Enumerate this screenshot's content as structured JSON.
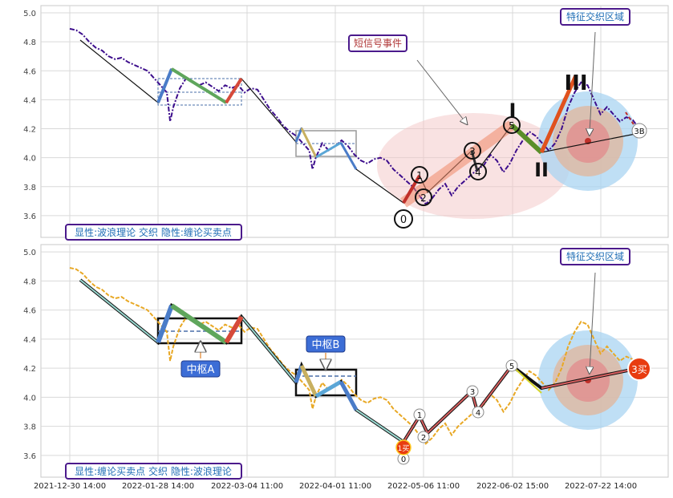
{
  "chart_data": [
    {
      "type": "line",
      "title": "",
      "ylim": [
        3.45,
        5.05
      ],
      "yticks": [
        3.6,
        3.8,
        4.0,
        4.2,
        4.4,
        4.6,
        4.8,
        5.0
      ],
      "grid": true,
      "legend_text": "显性:波浪理论 交织 隐性:缠论买卖点",
      "annotations": {
        "short_signal_event": "短信号事件",
        "feature_zone": "特征交织区域",
        "wave_labels": [
          "0",
          "1",
          "2",
          "3",
          "4",
          "5",
          "III",
          "II",
          "I",
          "3B"
        ]
      },
      "series": [
        {
          "style": "purple dash-dot price",
          "color": "#3c0d8c",
          "points": [
            [
              0,
              4.89
            ],
            [
              1,
              4.88
            ],
            [
              2,
              4.85
            ],
            [
              3,
              4.8
            ],
            [
              4,
              4.76
            ],
            [
              5,
              4.74
            ],
            [
              6,
              4.7
            ],
            [
              7,
              4.68
            ],
            [
              8,
              4.69
            ],
            [
              9,
              4.66
            ],
            [
              10,
              4.64
            ],
            [
              11,
              4.62
            ],
            [
              12,
              4.6
            ],
            [
              13,
              4.55
            ],
            [
              14,
              4.5
            ],
            [
              15,
              4.45
            ],
            [
              15.5,
              4.25
            ],
            [
              16,
              4.35
            ],
            [
              17,
              4.48
            ],
            [
              18,
              4.55
            ],
            [
              19,
              4.52
            ],
            [
              20,
              4.5
            ],
            [
              21,
              4.52
            ],
            [
              22,
              4.49
            ],
            [
              23,
              4.46
            ],
            [
              24,
              4.5
            ],
            [
              25,
              4.48
            ],
            [
              26,
              4.5
            ],
            [
              27,
              4.45
            ],
            [
              28,
              4.48
            ],
            [
              29,
              4.47
            ],
            [
              30,
              4.4
            ],
            [
              31,
              4.33
            ],
            [
              32,
              4.28
            ],
            [
              33,
              4.22
            ],
            [
              34,
              4.18
            ],
            [
              35,
              4.15
            ],
            [
              36,
              4.1
            ],
            [
              37,
              4.05
            ],
            [
              37.5,
              3.92
            ],
            [
              38,
              4.0
            ],
            [
              39,
              4.1
            ],
            [
              40,
              4.05
            ],
            [
              41,
              4.08
            ],
            [
              42,
              4.12
            ],
            [
              43,
              4.08
            ],
            [
              44,
              4.02
            ],
            [
              45,
              3.98
            ],
            [
              46,
              3.96
            ],
            [
              47,
              3.99
            ],
            [
              48,
              4.0
            ],
            [
              49,
              3.98
            ],
            [
              50,
              3.92
            ],
            [
              51,
              3.88
            ],
            [
              52,
              3.84
            ],
            [
              53,
              3.8
            ],
            [
              54,
              3.74
            ],
            [
              55,
              3.68
            ],
            [
              56,
              3.72
            ],
            [
              57,
              3.78
            ],
            [
              58,
              3.82
            ],
            [
              59,
              3.74
            ],
            [
              60,
              3.8
            ],
            [
              61,
              3.84
            ],
            [
              62,
              3.88
            ],
            [
              63,
              3.92
            ],
            [
              64,
              3.95
            ],
            [
              65,
              4.02
            ],
            [
              66,
              3.98
            ],
            [
              67,
              3.9
            ],
            [
              68,
              3.96
            ],
            [
              69,
              4.05
            ],
            [
              70,
              4.12
            ],
            [
              71,
              4.18
            ],
            [
              72,
              4.15
            ],
            [
              73,
              4.1
            ],
            [
              74,
              4.05
            ],
            [
              75,
              4.1
            ],
            [
              76,
              4.2
            ],
            [
              77,
              4.35
            ],
            [
              78,
              4.45
            ],
            [
              79,
              4.52
            ],
            [
              80,
              4.5
            ],
            [
              81,
              4.4
            ],
            [
              82,
              4.3
            ],
            [
              83,
              4.35
            ],
            [
              84,
              4.3
            ],
            [
              85,
              4.25
            ],
            [
              86,
              4.28
            ],
            [
              87,
              4.26
            ],
            [
              88,
              4.2
            ]
          ]
        }
      ]
    },
    {
      "type": "line",
      "title": "",
      "ylim": [
        3.45,
        5.05
      ],
      "yticks": [
        3.6,
        3.8,
        4.0,
        4.2,
        4.4,
        4.6,
        4.8,
        5.0
      ],
      "grid": true,
      "x_tick_labels": [
        "2021-12-30 14:00",
        "2022-01-28 14:00",
        "2022-03-04 11:00",
        "2022-04-01 11:00",
        "2022-05-06 11:00",
        "2022-06-02 15:00",
        "2022-07-22 14:00"
      ],
      "legend_text": "显性:缠论买卖点 交织 隐性:波浪理论",
      "annotations": {
        "pivot_a": "中枢A",
        "pivot_b": "中枢B",
        "feature_zone": "特征交织区域",
        "buy_1": "1买",
        "buy_3": "3买",
        "wave_labels": [
          "0",
          "1",
          "2",
          "3",
          "4",
          "5"
        ]
      },
      "series": [
        {
          "style": "orange dashed price",
          "color": "#e8a825",
          "points": [
            [
              0,
              4.89
            ],
            [
              1,
              4.88
            ],
            [
              2,
              4.85
            ],
            [
              3,
              4.8
            ],
            [
              4,
              4.76
            ],
            [
              5,
              4.74
            ],
            [
              6,
              4.7
            ],
            [
              7,
              4.68
            ],
            [
              8,
              4.69
            ],
            [
              9,
              4.66
            ],
            [
              10,
              4.64
            ],
            [
              11,
              4.62
            ],
            [
              12,
              4.6
            ],
            [
              13,
              4.55
            ],
            [
              14,
              4.5
            ],
            [
              15,
              4.45
            ],
            [
              15.5,
              4.25
            ],
            [
              16,
              4.35
            ],
            [
              17,
              4.48
            ],
            [
              18,
              4.55
            ],
            [
              19,
              4.52
            ],
            [
              20,
              4.5
            ],
            [
              21,
              4.52
            ],
            [
              22,
              4.49
            ],
            [
              23,
              4.46
            ],
            [
              24,
              4.5
            ],
            [
              25,
              4.48
            ],
            [
              26,
              4.5
            ],
            [
              27,
              4.45
            ],
            [
              28,
              4.48
            ],
            [
              29,
              4.47
            ],
            [
              30,
              4.4
            ],
            [
              31,
              4.33
            ],
            [
              32,
              4.28
            ],
            [
              33,
              4.22
            ],
            [
              34,
              4.18
            ],
            [
              35,
              4.15
            ],
            [
              36,
              4.1
            ],
            [
              37,
              4.05
            ],
            [
              37.5,
              3.92
            ],
            [
              38,
              4.0
            ],
            [
              39,
              4.1
            ],
            [
              40,
              4.05
            ],
            [
              41,
              4.08
            ],
            [
              42,
              4.12
            ],
            [
              43,
              4.08
            ],
            [
              44,
              4.02
            ],
            [
              45,
              3.98
            ],
            [
              46,
              3.96
            ],
            [
              47,
              3.99
            ],
            [
              48,
              4.0
            ],
            [
              49,
              3.98
            ],
            [
              50,
              3.92
            ],
            [
              51,
              3.88
            ],
            [
              52,
              3.84
            ],
            [
              53,
              3.8
            ],
            [
              54,
              3.74
            ],
            [
              55,
              3.68
            ],
            [
              56,
              3.72
            ],
            [
              57,
              3.78
            ],
            [
              58,
              3.82
            ],
            [
              59,
              3.74
            ],
            [
              60,
              3.8
            ],
            [
              61,
              3.84
            ],
            [
              62,
              3.88
            ],
            [
              63,
              3.92
            ],
            [
              64,
              3.95
            ],
            [
              65,
              4.02
            ],
            [
              66,
              3.98
            ],
            [
              67,
              3.9
            ],
            [
              68,
              3.96
            ],
            [
              69,
              4.05
            ],
            [
              70,
              4.12
            ],
            [
              71,
              4.18
            ],
            [
              72,
              4.15
            ],
            [
              73,
              4.1
            ],
            [
              74,
              4.05
            ],
            [
              75,
              4.1
            ],
            [
              76,
              4.2
            ],
            [
              77,
              4.35
            ],
            [
              78,
              4.45
            ],
            [
              79,
              4.52
            ],
            [
              80,
              4.5
            ],
            [
              81,
              4.4
            ],
            [
              82,
              4.3
            ],
            [
              83,
              4.35
            ],
            [
              84,
              4.3
            ],
            [
              85,
              4.25
            ],
            [
              86,
              4.28
            ],
            [
              87,
              4.26
            ],
            [
              88,
              4.2
            ]
          ]
        }
      ]
    }
  ]
}
